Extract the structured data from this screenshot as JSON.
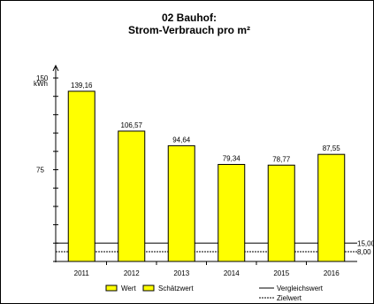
{
  "chart_data": {
    "type": "bar",
    "title": "02 Bauhof:",
    "subtitle": "Strom-Verbrauch pro m²",
    "ylabel": "kWh",
    "categories": [
      "2011",
      "2012",
      "2013",
      "2014",
      "2015",
      "2016"
    ],
    "values": [
      139.16,
      106.57,
      94.64,
      79.34,
      78.77,
      87.55
    ],
    "value_labels": [
      "139,16",
      "106,57",
      "94,64",
      "79,34",
      "78,77",
      "87,55"
    ],
    "ylim": [
      0,
      150
    ],
    "y_tick_labels": [
      {
        "value": 150,
        "label": "150"
      },
      {
        "value": 75,
        "label": "75"
      }
    ],
    "reference_lines": [
      {
        "name": "Vergleichswert",
        "value": 15,
        "label": "15,00",
        "style": "solid"
      },
      {
        "name": "Zielwert",
        "value": 8,
        "label": "8,00",
        "style": "dashed"
      }
    ],
    "legend": [
      {
        "label": "Wert",
        "kind": "box"
      },
      {
        "label": "Schätzwert",
        "kind": "box"
      },
      {
        "label": "Vergleichswert",
        "kind": "solid-line"
      },
      {
        "label": "Zielwert",
        "kind": "dashed-line"
      }
    ],
    "bar_color": "#ffff00",
    "grid": false,
    "legend_position": "bottom"
  }
}
